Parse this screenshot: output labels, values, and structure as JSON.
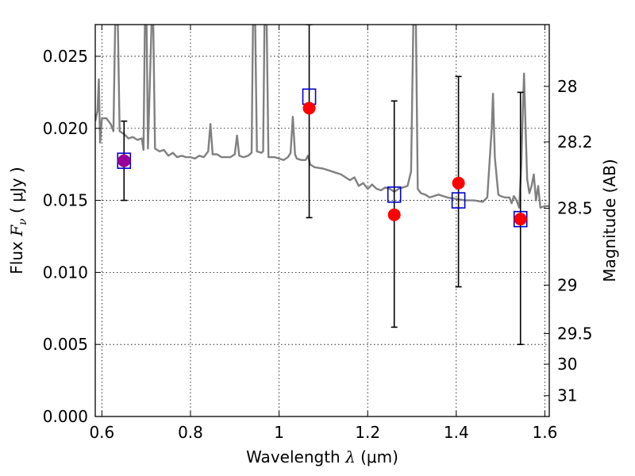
{
  "chart_data": {
    "type": "scatter",
    "title": "",
    "xlabel": {
      "main": "Wavelength  ",
      "symbol": "λ",
      "unit": " (μm)"
    },
    "ylabel": {
      "main": "Flux  ",
      "symbol": "F",
      "sub": "ν",
      "unit": "  ( μJy )"
    },
    "ylabel_right": "Magnitude (AB)",
    "xlim": [
      0.585,
      1.61
    ],
    "ylim": [
      0.0,
      0.0272
    ],
    "grid": true,
    "x_ticks": [
      {
        "value": 0.6,
        "label": "0.6"
      },
      {
        "value": 0.8,
        "label": "0.8"
      },
      {
        "value": 1.0,
        "label": "1"
      },
      {
        "value": 1.2,
        "label": "1.2"
      },
      {
        "value": 1.4,
        "label": "1.4"
      },
      {
        "value": 1.6,
        "label": "1.6"
      }
    ],
    "y_ticks": [
      {
        "value": 0.0,
        "label": "0.000"
      },
      {
        "value": 0.005,
        "label": "0.005"
      },
      {
        "value": 0.01,
        "label": "0.010"
      },
      {
        "value": 0.015,
        "label": "0.015"
      },
      {
        "value": 0.02,
        "label": "0.020"
      },
      {
        "value": 0.025,
        "label": "0.025"
      }
    ],
    "mag_ticks": [
      {
        "mag": 28,
        "label": "28"
      },
      {
        "mag": 28.2,
        "label": "28.2"
      },
      {
        "mag": 28.5,
        "label": "28.5"
      },
      {
        "mag": 29,
        "label": "29"
      },
      {
        "mag": 29.5,
        "label": "29.5"
      },
      {
        "mag": 30,
        "label": "30"
      },
      {
        "mag": 31,
        "label": "31"
      }
    ],
    "series": [
      {
        "kind": "line",
        "color": "#808080",
        "points": [
          [
            0.585,
            0.0205
          ],
          [
            0.59,
            0.0212
          ],
          [
            0.593,
            0.0234
          ],
          [
            0.596,
            0.019
          ],
          [
            0.6,
            0.0207
          ],
          [
            0.61,
            0.0207
          ],
          [
            0.62,
            0.0203
          ],
          [
            0.626,
            0.0198
          ],
          [
            0.63,
            0.0272
          ],
          [
            0.636,
            0.0272
          ],
          [
            0.64,
            0.0198
          ],
          [
            0.65,
            0.0196
          ],
          [
            0.66,
            0.0193
          ],
          [
            0.67,
            0.0194
          ],
          [
            0.68,
            0.0192
          ],
          [
            0.69,
            0.0193
          ],
          [
            0.694,
            0.0185
          ],
          [
            0.697,
            0.0272
          ],
          [
            0.701,
            0.0272
          ],
          [
            0.704,
            0.0186
          ],
          [
            0.712,
            0.0272
          ],
          [
            0.716,
            0.0272
          ],
          [
            0.72,
            0.0186
          ],
          [
            0.73,
            0.0184
          ],
          [
            0.74,
            0.0185
          ],
          [
            0.75,
            0.0181
          ],
          [
            0.76,
            0.0183
          ],
          [
            0.77,
            0.018
          ],
          [
            0.78,
            0.0181
          ],
          [
            0.79,
            0.018
          ],
          [
            0.8,
            0.018
          ],
          [
            0.81,
            0.0179
          ],
          [
            0.82,
            0.0181
          ],
          [
            0.83,
            0.018
          ],
          [
            0.84,
            0.0184
          ],
          [
            0.845,
            0.0203
          ],
          [
            0.85,
            0.0182
          ],
          [
            0.86,
            0.0182
          ],
          [
            0.87,
            0.018
          ],
          [
            0.88,
            0.018
          ],
          [
            0.89,
            0.018
          ],
          [
            0.9,
            0.0182
          ],
          [
            0.905,
            0.0195
          ],
          [
            0.91,
            0.0181
          ],
          [
            0.92,
            0.018
          ],
          [
            0.93,
            0.0181
          ],
          [
            0.938,
            0.0183
          ],
          [
            0.941,
            0.0272
          ],
          [
            0.946,
            0.0272
          ],
          [
            0.95,
            0.0184
          ],
          [
            0.96,
            0.0183
          ],
          [
            0.964,
            0.0184
          ],
          [
            0.967,
            0.0272
          ],
          [
            0.972,
            0.0272
          ],
          [
            0.976,
            0.018
          ],
          [
            0.98,
            0.018
          ],
          [
            0.99,
            0.018
          ],
          [
            1.0,
            0.0179
          ],
          [
            1.01,
            0.0178
          ],
          [
            1.02,
            0.018
          ],
          [
            1.026,
            0.0183
          ],
          [
            1.031,
            0.0208
          ],
          [
            1.036,
            0.0182
          ],
          [
            1.04,
            0.0179
          ],
          [
            1.05,
            0.0178
          ],
          [
            1.06,
            0.0178
          ],
          [
            1.065,
            0.0181
          ],
          [
            1.07,
            0.0175
          ],
          [
            1.08,
            0.0173
          ],
          [
            1.1,
            0.0172
          ],
          [
            1.12,
            0.017
          ],
          [
            1.14,
            0.0168
          ],
          [
            1.16,
            0.0164
          ],
          [
            1.17,
            0.0166
          ],
          [
            1.18,
            0.016
          ],
          [
            1.19,
            0.0162
          ],
          [
            1.2,
            0.0158
          ],
          [
            1.21,
            0.0161
          ],
          [
            1.22,
            0.0158
          ],
          [
            1.23,
            0.0157
          ],
          [
            1.24,
            0.0159
          ],
          [
            1.25,
            0.0158
          ],
          [
            1.26,
            0.0156
          ],
          [
            1.27,
            0.0158
          ],
          [
            1.28,
            0.0159
          ],
          [
            1.29,
            0.016
          ],
          [
            1.298,
            0.017
          ],
          [
            1.303,
            0.0272
          ],
          [
            1.309,
            0.0272
          ],
          [
            1.313,
            0.0158
          ],
          [
            1.32,
            0.0155
          ],
          [
            1.33,
            0.0154
          ],
          [
            1.34,
            0.0152
          ],
          [
            1.36,
            0.0154
          ],
          [
            1.38,
            0.0152
          ],
          [
            1.4,
            0.0151
          ],
          [
            1.42,
            0.015
          ],
          [
            1.44,
            0.015
          ],
          [
            1.46,
            0.0149
          ],
          [
            1.47,
            0.0152
          ],
          [
            1.48,
            0.02
          ],
          [
            1.483,
            0.0224
          ],
          [
            1.487,
            0.018
          ],
          [
            1.495,
            0.0154
          ],
          [
            1.5,
            0.0153
          ],
          [
            1.51,
            0.0152
          ],
          [
            1.52,
            0.0152
          ],
          [
            1.525,
            0.0148
          ],
          [
            1.53,
            0.0153
          ],
          [
            1.536,
            0.015
          ],
          [
            1.542,
            0.0145
          ],
          [
            1.547,
            0.0175
          ],
          [
            1.55,
            0.021
          ],
          [
            1.553,
            0.0238
          ],
          [
            1.556,
            0.0205
          ],
          [
            1.56,
            0.0165
          ],
          [
            1.565,
            0.0155
          ],
          [
            1.57,
            0.016
          ],
          [
            1.575,
            0.0168
          ],
          [
            1.58,
            0.015
          ],
          [
            1.585,
            0.016
          ],
          [
            1.59,
            0.0145
          ],
          [
            1.6,
            0.0146
          ],
          [
            1.61,
            0.0146
          ]
        ]
      },
      {
        "kind": "errorbar",
        "color": "#000000",
        "points": [
          {
            "x": 0.65,
            "y": 0.01775,
            "lo": 0.015,
            "hi": 0.0205
          },
          {
            "x": 1.068,
            "y": 0.0222,
            "lo": 0.0138,
            "hi": 0.0272
          },
          {
            "x": 1.26,
            "y": 0.0154,
            "lo": 0.0062,
            "hi": 0.0219
          },
          {
            "x": 1.405,
            "y": 0.015,
            "lo": 0.009,
            "hi": 0.0236
          },
          {
            "x": 1.545,
            "y": 0.0137,
            "lo": 0.005,
            "hi": 0.0225
          }
        ]
      },
      {
        "kind": "square",
        "color": "#0000cc",
        "points": [
          [
            0.65,
            0.01775
          ],
          [
            1.068,
            0.0222
          ],
          [
            1.26,
            0.0154
          ],
          [
            1.405,
            0.015
          ],
          [
            1.545,
            0.0137
          ]
        ]
      },
      {
        "kind": "circle",
        "color": "#ff0000",
        "points": [
          [
            0.65,
            0.01775
          ],
          [
            1.068,
            0.0214
          ],
          [
            1.26,
            0.014
          ],
          [
            1.405,
            0.0162
          ],
          [
            1.545,
            0.0137
          ]
        ]
      }
    ],
    "highlight_point": {
      "x": 0.65,
      "y": 0.01775,
      "color": "#990099"
    }
  }
}
